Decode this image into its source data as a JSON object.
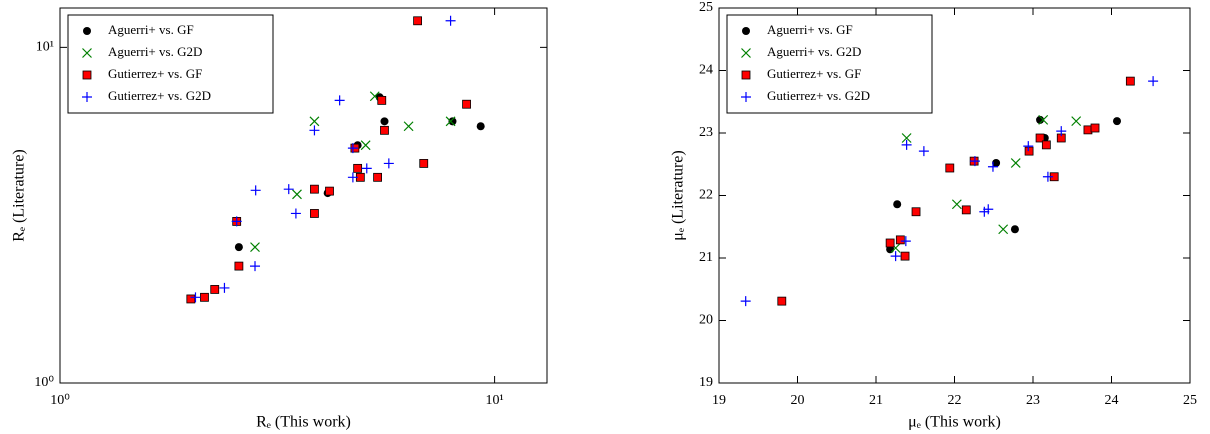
{
  "chart_data": [
    {
      "type": "scatter",
      "xlabel": "Rₑ (This work)",
      "ylabel": "Rₑ (Literature)",
      "xscale": "log",
      "yscale": "log",
      "xlim": [
        1,
        13.2
      ],
      "ylim": [
        1,
        13.1
      ],
      "xticks": [
        {
          "value": 1,
          "label": "10⁰"
        },
        {
          "value": 10,
          "label": "10¹"
        }
      ],
      "yticks": [
        {
          "value": 1,
          "label": "10⁰"
        },
        {
          "value": 10,
          "label": "10¹"
        }
      ],
      "legend": "upper left",
      "series": [
        {
          "name": "Aguerri+ vs. GF",
          "color": "#000000",
          "marker": "o",
          "x": [
            2.58,
            4.13,
            4.84,
            5.44,
            5.58,
            8.0,
            9.29
          ],
          "values": [
            2.54,
            3.68,
            5.11,
            7.1,
            6.02,
            6.02,
            5.82
          ]
        },
        {
          "name": "Aguerri+ vs. G2D",
          "color": "#008000",
          "marker": "x",
          "x": [
            2.81,
            3.51,
            3.85,
            5.05,
            5.3,
            6.34,
            7.92
          ],
          "values": [
            2.54,
            3.65,
            6.02,
            5.11,
            7.15,
            5.82,
            6.02
          ]
        },
        {
          "name": "Gutierrez+ vs. GF",
          "color": "#ff0000",
          "marker": "s",
          "x": [
            2.0,
            2.15,
            2.27,
            2.58,
            2.55,
            3.85,
            3.85,
            4.17,
            4.77,
            4.84,
            4.91,
            5.38,
            5.5,
            5.58,
            6.65,
            6.87,
            8.62
          ],
          "values": [
            1.78,
            1.8,
            1.9,
            2.23,
            3.03,
            3.2,
            3.78,
            3.73,
            5.01,
            4.36,
            4.1,
            4.1,
            6.95,
            5.66,
            12.0,
            4.51,
            6.77
          ]
        },
        {
          "name": "Gutierrez+ vs. G2D",
          "color": "#0000ff",
          "marker": "+",
          "x": [
            2.05,
            2.39,
            2.81,
            2.55,
            2.82,
            3.36,
            3.49,
            3.85,
            4.4,
            4.72,
            4.72,
            5.08,
            5.71,
            7.92
          ],
          "values": [
            1.8,
            1.92,
            2.23,
            3.03,
            3.75,
            3.78,
            3.2,
            5.66,
            6.95,
            5.01,
            4.1,
            4.36,
            4.51,
            12.0
          ]
        }
      ]
    },
    {
      "type": "scatter",
      "xlabel": "μₑ (This work)",
      "ylabel": "μₑ (Literature)",
      "xscale": "linear",
      "yscale": "linear",
      "xlim": [
        19,
        25
      ],
      "ylim": [
        19,
        25
      ],
      "xticks": [
        19,
        20,
        21,
        22,
        23,
        24,
        25
      ],
      "yticks": [
        19,
        20,
        21,
        22,
        23,
        24,
        25
      ],
      "legend": "upper left",
      "series": [
        {
          "name": "Aguerri+ vs. GF",
          "color": "#000000",
          "marker": "o",
          "x": [
            21.18,
            21.27,
            22.53,
            22.77,
            23.09,
            23.15,
            24.07
          ],
          "values": [
            21.14,
            21.86,
            22.52,
            21.46,
            23.21,
            22.92,
            23.19
          ]
        },
        {
          "name": "Aguerri+ vs. G2D",
          "color": "#008000",
          "marker": "x",
          "x": [
            21.39,
            21.25,
            22.03,
            22.62,
            22.78,
            23.13,
            23.55
          ],
          "values": [
            22.92,
            21.16,
            21.86,
            21.46,
            22.52,
            23.21,
            23.19
          ]
        },
        {
          "name": "Gutierrez+ vs. GF",
          "color": "#ff0000",
          "marker": "s",
          "x": [
            19.8,
            21.18,
            21.31,
            21.37,
            21.51,
            21.94,
            22.15,
            22.25,
            22.95,
            23.09,
            23.17,
            23.27,
            23.36,
            23.7,
            23.79,
            24.24
          ],
          "values": [
            20.31,
            21.24,
            21.29,
            21.03,
            21.74,
            22.44,
            21.77,
            22.55,
            22.71,
            22.92,
            22.81,
            22.3,
            22.92,
            23.05,
            23.08,
            23.83
          ]
        },
        {
          "name": "Gutierrez+ vs. G2D",
          "color": "#0000ff",
          "marker": "+",
          "x": [
            19.34,
            21.25,
            21.38,
            21.39,
            21.61,
            22.26,
            22.38,
            22.43,
            22.49,
            22.94,
            23.19,
            23.36,
            24.53
          ],
          "values": [
            20.31,
            21.03,
            21.27,
            22.81,
            22.71,
            22.55,
            21.74,
            21.78,
            22.46,
            22.79,
            22.3,
            23.03,
            23.83
          ]
        }
      ]
    }
  ]
}
